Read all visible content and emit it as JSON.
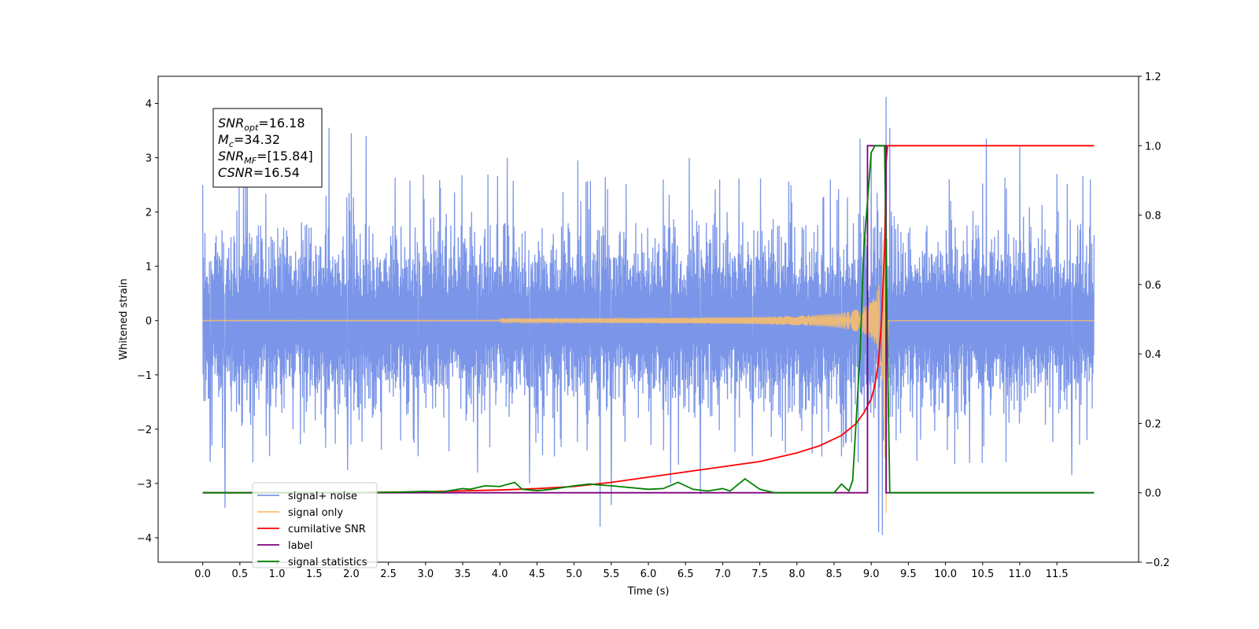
{
  "chart_data": {
    "type": "line",
    "xlabel": "Time (s)",
    "ylabel": "Whitened strain",
    "xlim": [
      -0.6,
      12.6
    ],
    "ylim": [
      -4.45,
      4.5
    ],
    "y2lim": [
      -0.2,
      1.2
    ],
    "xticks": [
      0.0,
      0.5,
      1.0,
      1.5,
      2.0,
      2.5,
      3.0,
      3.5,
      4.0,
      4.5,
      5.0,
      5.5,
      6.0,
      6.5,
      7.0,
      7.5,
      8.0,
      8.5,
      9.0,
      9.5,
      10.0,
      10.5,
      11.0,
      11.5
    ],
    "xtick_labels": [
      "0.0",
      "0.5",
      "1.0",
      "1.5",
      "2.0",
      "2.5",
      "3.0",
      "3.5",
      "4.0",
      "4.5",
      "5.0",
      "5.5",
      "6.0",
      "6.5",
      "7.0",
      "7.5",
      "8.0",
      "8.5",
      "9.0",
      "9.5",
      "10.0",
      "10.5",
      "11.0",
      "11.5"
    ],
    "yticks": [
      -4,
      -3,
      -2,
      -1,
      0,
      1,
      2,
      3,
      4
    ],
    "ytick_labels": [
      "−4",
      "−3",
      "−2",
      "−1",
      "0",
      "1",
      "2",
      "3",
      "4"
    ],
    "y2ticks": [
      -0.2,
      0.0,
      0.2,
      0.4,
      0.6,
      0.8,
      1.0,
      1.2
    ],
    "y2tick_labels": [
      "−0.2",
      "0.0",
      "0.2",
      "0.4",
      "0.6",
      "0.8",
      "1.0",
      "1.2"
    ],
    "legend_position": "lower-left",
    "annotation": [
      {
        "base": "SNR",
        "sub": "opt",
        "value": "=16.18"
      },
      {
        "base": "M",
        "sub": "c",
        "value": "=34.32"
      },
      {
        "base": "SNR",
        "sub": "MF",
        "value": "=[15.84]"
      },
      {
        "base": "CSNR",
        "sub": "",
        "value": "=16.54"
      }
    ],
    "series": [
      {
        "name": "signal+ noise",
        "axis": "left",
        "color": "#7b96e8",
        "kind": "noise",
        "x_range": [
          0.0,
          12.0
        ],
        "band": [
          -1.3,
          1.8
        ],
        "peaks": [
          [
            0.0,
            2.5
          ],
          [
            0.1,
            -2.6
          ],
          [
            0.3,
            -3.45
          ],
          [
            0.55,
            3.2
          ],
          [
            0.9,
            -2.5
          ],
          [
            1.7,
            3.55
          ],
          [
            1.95,
            -2.75
          ],
          [
            2.0,
            3.45
          ],
          [
            2.2,
            3.4
          ],
          [
            2.9,
            -2.5
          ],
          [
            3.7,
            -2.8
          ],
          [
            4.1,
            3.0
          ],
          [
            4.4,
            -3.0
          ],
          [
            5.05,
            2.95
          ],
          [
            5.35,
            -3.8
          ],
          [
            5.5,
            -3.4
          ],
          [
            6.2,
            2.6
          ],
          [
            6.3,
            -3.0
          ],
          [
            6.55,
            3.0
          ],
          [
            6.7,
            -3.2
          ],
          [
            7.4,
            -2.5
          ],
          [
            8.45,
            2.6
          ],
          [
            8.6,
            -2.5
          ],
          [
            8.85,
            3.35
          ],
          [
            9.0,
            3.05
          ],
          [
            9.1,
            -3.9
          ],
          [
            9.2,
            4.12
          ],
          [
            9.15,
            -3.95
          ],
          [
            9.25,
            3.55
          ],
          [
            10.05,
            2.6
          ],
          [
            10.55,
            3.35
          ],
          [
            11.0,
            3.2
          ],
          [
            11.5,
            2.7
          ],
          [
            11.7,
            -2.85
          ],
          [
            11.95,
            2.6
          ]
        ]
      },
      {
        "name": "signal only",
        "axis": "left",
        "color": "#ffbf66",
        "kind": "chirp",
        "x_range": [
          0.0,
          12.0
        ],
        "merger": 9.2,
        "peak_amplitude": 3.5,
        "min_value": -3.55
      },
      {
        "name": "cumilative SNR",
        "axis": "right",
        "color": "#ff0000",
        "x": [
          0.0,
          1.0,
          2.0,
          3.0,
          4.0,
          4.5,
          5.0,
          5.5,
          6.0,
          6.5,
          7.0,
          7.5,
          8.0,
          8.3,
          8.6,
          8.8,
          8.9,
          9.0,
          9.05,
          9.1,
          9.14,
          9.18,
          9.2,
          9.22,
          12.0
        ],
        "y": [
          0.0,
          0.0,
          0.0,
          0.003,
          0.008,
          0.012,
          0.018,
          0.03,
          0.045,
          0.06,
          0.075,
          0.09,
          0.115,
          0.135,
          0.165,
          0.2,
          0.23,
          0.27,
          0.31,
          0.38,
          0.5,
          0.7,
          0.95,
          1.0,
          1.0
        ]
      },
      {
        "name": "label",
        "axis": "right",
        "color": "#800080",
        "x": [
          0.0,
          8.95,
          8.95,
          9.2,
          9.2,
          12.0
        ],
        "y": [
          0.0,
          0.0,
          1.0,
          1.0,
          0.0,
          0.0
        ]
      },
      {
        "name": "signal statistics",
        "axis": "right",
        "color": "#008000",
        "x": [
          0.0,
          1.0,
          2.0,
          2.7,
          3.0,
          3.2,
          3.5,
          3.6,
          3.8,
          4.0,
          4.2,
          4.3,
          4.5,
          4.7,
          5.0,
          5.2,
          5.5,
          6.0,
          6.2,
          6.4,
          6.6,
          6.8,
          7.0,
          7.1,
          7.3,
          7.5,
          7.7,
          8.0,
          8.5,
          8.6,
          8.7,
          8.75,
          8.85,
          8.9,
          9.0,
          9.05,
          9.1,
          9.18,
          9.22,
          9.25,
          9.4,
          12.0
        ],
        "y": [
          0.0,
          0.0,
          0.0,
          0.002,
          0.004,
          0.002,
          0.012,
          0.01,
          0.02,
          0.018,
          0.03,
          0.01,
          0.006,
          0.01,
          0.02,
          0.025,
          0.02,
          0.01,
          0.012,
          0.03,
          0.01,
          0.005,
          0.012,
          0.005,
          0.04,
          0.01,
          0.0,
          0.0,
          0.0,
          0.025,
          0.005,
          0.035,
          0.4,
          0.7,
          0.98,
          1.0,
          1.0,
          1.0,
          0.4,
          0.0,
          0.0,
          0.0
        ]
      }
    ]
  }
}
